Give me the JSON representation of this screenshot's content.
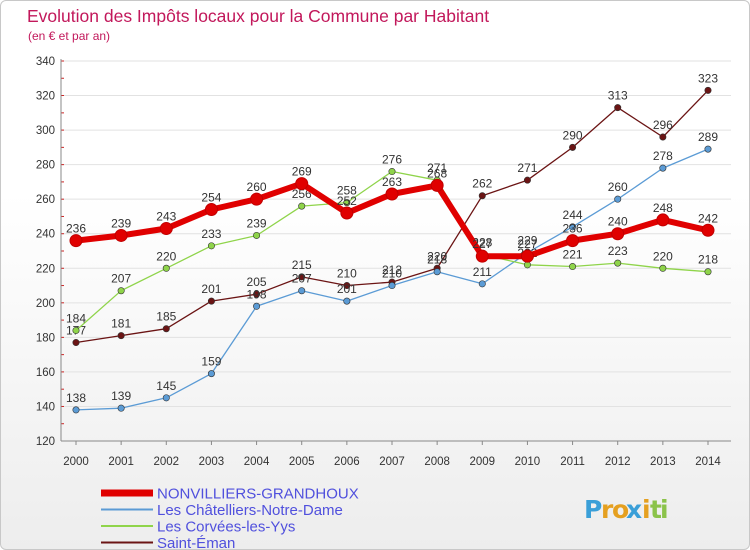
{
  "chart_data": {
    "type": "line",
    "title": "Evolution des Impôts locaux pour la Commune par Habitant",
    "subtitle": "(en € et par an)",
    "xlabel": "",
    "ylabel": "",
    "x": [
      "2000",
      "2001",
      "2002",
      "2003",
      "2004",
      "2005",
      "2006",
      "2007",
      "2008",
      "2009",
      "2010",
      "2011",
      "2012",
      "2013",
      "2014"
    ],
    "ylim": [
      120,
      340
    ],
    "yticks": [
      120,
      140,
      160,
      180,
      200,
      220,
      240,
      260,
      280,
      300,
      320,
      340
    ],
    "grid": "y",
    "legend_position": "bottom-left",
    "series": [
      {
        "name": "Saint-Éman",
        "color": "#6b1414",
        "values": [
          177,
          181,
          185,
          201,
          205,
          215,
          210,
          212,
          220,
          262,
          271,
          290,
          313,
          296,
          323
        ]
      },
      {
        "name": "Les Châtelliers-Notre-Dame",
        "color": "#5b9bd5",
        "values": [
          138,
          139,
          145,
          159,
          198,
          207,
          201,
          210,
          218,
          211,
          229,
          244,
          260,
          278,
          289
        ]
      },
      {
        "name": "Les Corvées-les-Yys",
        "color": "#8fd44a",
        "values": [
          184,
          207,
          220,
          233,
          239,
          256,
          258,
          276,
          271,
          228,
          222,
          221,
          223,
          220,
          218
        ]
      },
      {
        "name": "NONVILLIERS-GRANDHOUX",
        "color": "#e00000",
        "values": [
          236,
          239,
          243,
          254,
          260,
          269,
          252,
          263,
          268,
          227,
          227,
          236,
          240,
          248,
          242
        ]
      }
    ],
    "legend_order": [
      "NONVILLIERS-GRANDHOUX",
      "Les Châtelliers-Notre-Dame",
      "Les Corvées-les-Yys",
      "Saint-Éman"
    ]
  },
  "branding": {
    "letters": [
      "P",
      "r",
      "o",
      "x",
      "i",
      "t",
      "i"
    ],
    "colors": [
      "#3a9fd8",
      "#e5a020",
      "#e5a020",
      "#3a9fd8",
      "#e5a020",
      "#8bc34a",
      "#8bc34a"
    ]
  },
  "colors": {
    "title": "#c2185b",
    "legend_text": "#5050dd",
    "axis_text": "#333333",
    "grid": "#e2e2e2"
  }
}
